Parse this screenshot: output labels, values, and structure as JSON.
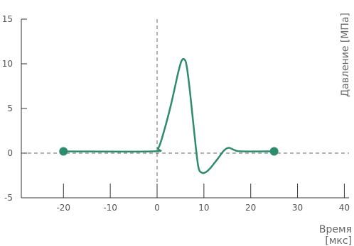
{
  "chart_data": {
    "type": "line",
    "xlabel_line1": "Время",
    "xlabel_line2": "[мкс]",
    "ylabel": "Давление [МПа]",
    "xlim": [
      -29,
      41
    ],
    "ylim": [
      -5,
      15
    ],
    "x_ticks": [
      -20,
      -10,
      0,
      10,
      20,
      30,
      40
    ],
    "y_ticks": [
      -5,
      0,
      5,
      10,
      15
    ],
    "grid": false,
    "reference_lines": {
      "x": 0,
      "y": 0
    },
    "line_color": "#2e8b6e",
    "axis_color": "#333333",
    "series": [
      {
        "points": [
          [
            -20,
            0.2
          ],
          [
            -1,
            0.2
          ],
          [
            0.3,
            0.6
          ],
          [
            1.5,
            2.5
          ],
          [
            3,
            5.5
          ],
          [
            4.5,
            9.0
          ],
          [
            5.2,
            10.3
          ],
          [
            5.8,
            10.5
          ],
          [
            6.3,
            9.8
          ],
          [
            7,
            7.0
          ],
          [
            8,
            2.0
          ],
          [
            8.8,
            -1.5
          ],
          [
            9.6,
            -2.2
          ],
          [
            10.5,
            -2.1
          ],
          [
            11.5,
            -1.6
          ],
          [
            13,
            -0.6
          ],
          [
            14.3,
            0.3
          ],
          [
            15.3,
            0.6
          ],
          [
            16.5,
            0.35
          ],
          [
            18,
            0.2
          ],
          [
            25,
            0.2
          ]
        ],
        "endpoints": [
          [
            -20,
            0.2
          ],
          [
            25,
            0.2
          ]
        ]
      }
    ]
  }
}
